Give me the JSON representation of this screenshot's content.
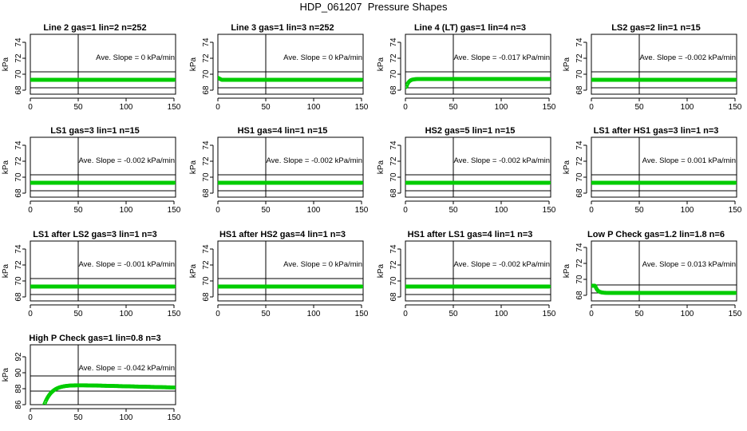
{
  "figure": {
    "title": "HDP_061207  Pressure Shapes"
  },
  "chart_data": [
    {
      "type": "scatter",
      "title": "Line 2 gas=1 lin=2 n=252",
      "ylabel": "kPa",
      "annotation": "Ave. Slope =  0  kPa/min",
      "xlim": [
        0,
        150
      ],
      "ylim": [
        67.5,
        75
      ],
      "yticks": [
        68,
        70,
        72,
        74
      ],
      "xticks": [
        0,
        50,
        100,
        150
      ],
      "hlines": [
        70.3,
        68.3
      ],
      "vline": 50,
      "point_color": "#00cc00",
      "shape": "flat",
      "level": 69.3
    },
    {
      "type": "scatter",
      "title": "Line 3 gas=1 lin=3 n=252",
      "ylabel": "kPa",
      "annotation": "Ave. Slope =  0  kPa/min",
      "xlim": [
        0,
        150
      ],
      "ylim": [
        67.5,
        75
      ],
      "yticks": [
        68,
        70,
        72,
        74
      ],
      "xticks": [
        0,
        50,
        100,
        150
      ],
      "hlines": [
        70.3,
        68.3
      ],
      "vline": 50,
      "point_color": "#00cc00",
      "shape": "start_bump",
      "level": 69.3
    },
    {
      "type": "scatter",
      "title": "Line 4 (LT) gas=1 lin=4 n=3",
      "ylabel": "kPa",
      "annotation": "Ave. Slope = -0.017  kPa/min",
      "xlim": [
        0,
        150
      ],
      "ylim": [
        67.5,
        75
      ],
      "yticks": [
        68,
        70,
        72,
        74
      ],
      "xticks": [
        0,
        50,
        100,
        150
      ],
      "hlines": [
        70.3,
        68.3
      ],
      "vline": 50,
      "point_color": "#00cc00",
      "shape": "rise",
      "level": 69.4,
      "start": 68.4
    },
    {
      "type": "scatter",
      "title": "LS2 gas=2 lin=1 n=15",
      "ylabel": "kPa",
      "annotation": "Ave. Slope = -0.002  kPa/min",
      "xlim": [
        0,
        150
      ],
      "ylim": [
        67.5,
        75
      ],
      "yticks": [
        68,
        70,
        72,
        74
      ],
      "xticks": [
        0,
        50,
        100,
        150
      ],
      "hlines": [
        70.3,
        68.3
      ],
      "vline": 50,
      "point_color": "#00cc00",
      "shape": "flat",
      "level": 69.3
    },
    {
      "type": "scatter",
      "title": "LS1 gas=3 lin=1 n=15",
      "ylabel": "kPa",
      "annotation": "Ave. Slope = -0.002  kPa/min",
      "xlim": [
        0,
        150
      ],
      "ylim": [
        67.5,
        75
      ],
      "yticks": [
        68,
        70,
        72,
        74
      ],
      "xticks": [
        0,
        50,
        100,
        150
      ],
      "hlines": [
        70.3,
        68.3
      ],
      "vline": 50,
      "point_color": "#00cc00",
      "shape": "flat",
      "level": 69.3
    },
    {
      "type": "scatter",
      "title": "HS1 gas=4 lin=1 n=15",
      "ylabel": "kPa",
      "annotation": "Ave. Slope = -0.002  kPa/min",
      "xlim": [
        0,
        150
      ],
      "ylim": [
        67.5,
        75
      ],
      "yticks": [
        68,
        70,
        72,
        74
      ],
      "xticks": [
        0,
        50,
        100,
        150
      ],
      "hlines": [
        70.3,
        68.3
      ],
      "vline": 50,
      "point_color": "#00cc00",
      "shape": "flat",
      "level": 69.3
    },
    {
      "type": "scatter",
      "title": "HS2 gas=5 lin=1 n=15",
      "ylabel": "kPa",
      "annotation": "Ave. Slope = -0.002  kPa/min",
      "xlim": [
        0,
        150
      ],
      "ylim": [
        67.5,
        75
      ],
      "yticks": [
        68,
        70,
        72,
        74
      ],
      "xticks": [
        0,
        50,
        100,
        150
      ],
      "hlines": [
        70.3,
        68.3
      ],
      "vline": 50,
      "point_color": "#00cc00",
      "shape": "flat",
      "level": 69.3
    },
    {
      "type": "scatter",
      "title": "LS1 after HS1 gas=3 lin=1 n=3",
      "ylabel": "kPa",
      "annotation": "Ave. Slope = 0.001  kPa/min",
      "xlim": [
        0,
        150
      ],
      "ylim": [
        67.5,
        75
      ],
      "yticks": [
        68,
        70,
        72,
        74
      ],
      "xticks": [
        0,
        50,
        100,
        150
      ],
      "hlines": [
        70.3,
        68.3
      ],
      "vline": 50,
      "point_color": "#00cc00",
      "shape": "flat",
      "level": 69.3
    },
    {
      "type": "scatter",
      "title": "LS1 after LS2 gas=3 lin=1 n=3",
      "ylabel": "kPa",
      "annotation": "Ave. Slope = -0.001  kPa/min",
      "xlim": [
        0,
        150
      ],
      "ylim": [
        67.5,
        75
      ],
      "yticks": [
        68,
        70,
        72,
        74
      ],
      "xticks": [
        0,
        50,
        100,
        150
      ],
      "hlines": [
        70.3,
        68.3
      ],
      "vline": 50,
      "point_color": "#00cc00",
      "shape": "flat",
      "level": 69.3
    },
    {
      "type": "scatter",
      "title": "HS1 after HS2 gas=4 lin=1 n=3",
      "ylabel": "kPa",
      "annotation": "Ave. Slope =  0  kPa/min",
      "xlim": [
        0,
        150
      ],
      "ylim": [
        67.5,
        75
      ],
      "yticks": [
        68,
        70,
        72,
        74
      ],
      "xticks": [
        0,
        50,
        100,
        150
      ],
      "hlines": [
        70.3,
        68.3
      ],
      "vline": 50,
      "point_color": "#00cc00",
      "shape": "flat",
      "level": 69.3
    },
    {
      "type": "scatter",
      "title": "HS1 after LS1 gas=4 lin=1 n=3",
      "ylabel": "kPa",
      "annotation": "Ave. Slope = -0.002  kPa/min",
      "xlim": [
        0,
        150
      ],
      "ylim": [
        67.5,
        75
      ],
      "yticks": [
        68,
        70,
        72,
        74
      ],
      "xticks": [
        0,
        50,
        100,
        150
      ],
      "hlines": [
        70.3,
        68.3
      ],
      "vline": 50,
      "point_color": "#00cc00",
      "shape": "flat",
      "level": 69.3
    },
    {
      "type": "scatter",
      "title": "Low P Check gas=1.2 lin=1.8 n=6",
      "ylabel": "kPa",
      "annotation": "Ave. Slope = 0.013  kPa/min",
      "xlim": [
        0,
        150
      ],
      "ylim": [
        67.3,
        74.8
      ],
      "yticks": [
        68,
        70,
        72,
        74
      ],
      "xticks": [
        0,
        50,
        100,
        150
      ],
      "hlines": [
        69.3,
        68.3
      ],
      "vline": 50,
      "point_color": "#00cc00",
      "shape": "drop",
      "level": 68.3,
      "start": 69.2
    },
    {
      "type": "scatter",
      "title": "High P Check gas=1 lin=0.8 n=3",
      "ylabel": "kPa",
      "annotation": "Ave. Slope = -0.042  kPa/min",
      "xlim": [
        0,
        150
      ],
      "ylim": [
        86,
        93.5
      ],
      "yticks": [
        86,
        88,
        90,
        92
      ],
      "xticks": [
        0,
        50,
        100,
        150
      ],
      "hlines": [
        89.6,
        87.7
      ],
      "vline": 50,
      "point_color": "#00cc00",
      "shape": "saturate",
      "level": 88.6,
      "start": 85.5
    }
  ]
}
